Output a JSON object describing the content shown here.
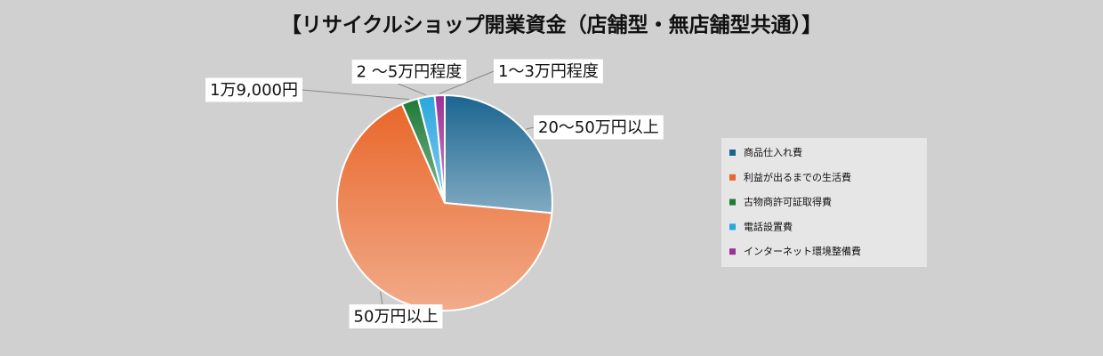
{
  "chart_data": {
    "type": "pie",
    "title": "【リサイクルショップ開業資金（店舗型・無店舗型共通）】",
    "categories": [
      "商品仕入れ費",
      "利益が出るまでの生活費",
      "古物商許可証取得費",
      "電話設置費",
      "インターネット環境整備費"
    ],
    "values": [
      26.5,
      67,
      2.5,
      2.5,
      1.5
    ],
    "labels": [
      "20〜50万円以上",
      "50万円以上",
      "1万9,000円",
      "2 〜5万円程度",
      "1〜3万円程度"
    ],
    "colors": [
      "#1a6590",
      "#e8672a",
      "#1d7a37",
      "#2aa6de",
      "#9c2f97"
    ]
  }
}
